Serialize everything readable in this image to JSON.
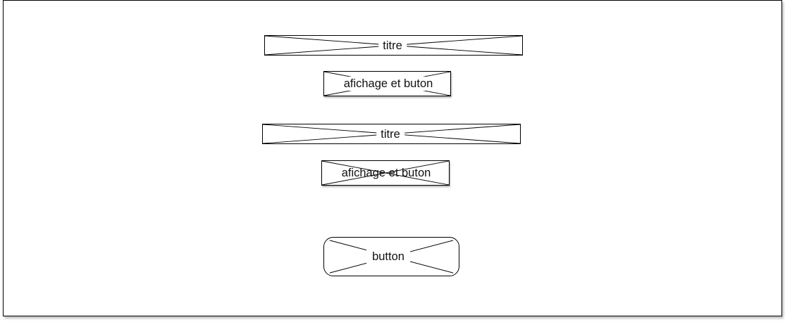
{
  "wireframe": {
    "section_1": {
      "title_label": "titre",
      "content_label": "afichage et buton"
    },
    "section_2": {
      "title_label": "titre",
      "content_label": "afichage et buton"
    },
    "action_button_label": "button"
  },
  "colors": {
    "stroke": "#000000",
    "background": "#ffffff",
    "text": "#111111"
  }
}
